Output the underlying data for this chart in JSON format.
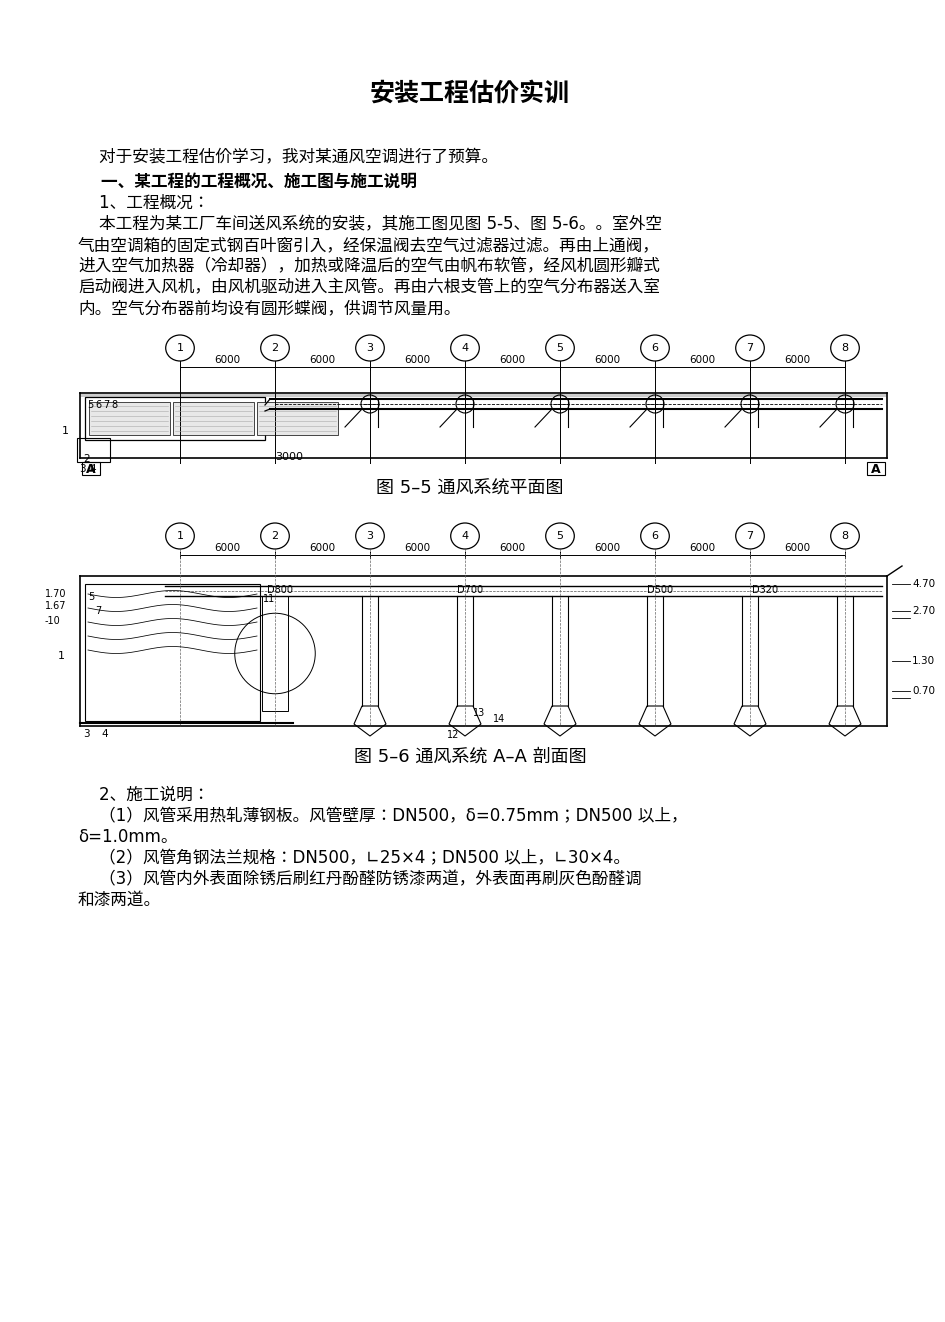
{
  "title": "安装工程估价实训",
  "bg_color": "#ffffff",
  "intro_line": "    对于安装工程估价学习，我对某通风空调进行了预算。",
  "section1_title": "一、某工程的工程概况、施工图与施工说明",
  "subsection1": "    1、工程概况：",
  "para1_lines": [
    "    本工程为某工厂车间送风系统的安装，其施工图见图 5-5、图 5-6。。室外空",
    "气由空调箱的固定式钢百叶窗引入，经保温阀去空气过滤器过滤。再由上通阀，",
    "进入空气加热器（冷却器），加热或降温后的空气由帆布软管，经风机圆形瓣式",
    "启动阀进入风机，由风机驱动进入主风管。再由六根支管上的空气分布器送入室",
    "内。空气分布器前均设有圆形蝶阀，供调节风量用。"
  ],
  "fig55_caption": "图 5–5 通风系统平面图",
  "fig56_caption": "图 5–6 通风系统 A–A 剖面图",
  "subsection2": "    2、施工说明：",
  "item1_a": "    （1）风管采用热轧薄钢板。风管壁厚：DN500，δ=0.75mm；DN500 以上，",
  "item1_b": "δ=1.0mm。",
  "item2": "    （2）风管角钢法兰规格：DN500，∟25×4；DN500 以上，∟30×4。",
  "item3_a": "    （3）风管内外表面除锈后刷红丹酚醛防锈漆两道，外表面再刷灰色酚醛调",
  "item3_b": "和漆两道。",
  "grid_nums": [
    "1",
    "2",
    "3",
    "4",
    "5",
    "6",
    "7",
    "8"
  ],
  "dim_label": "6000",
  "duct_labels_56": [
    "D800",
    "D700",
    "D500",
    "D320"
  ],
  "height_labels": [
    "4.70",
    "2.70",
    "1.30",
    "0.70"
  ],
  "left_labels": [
    "1.70",
    "1.67",
    "-10"
  ],
  "label_3000": "3000"
}
